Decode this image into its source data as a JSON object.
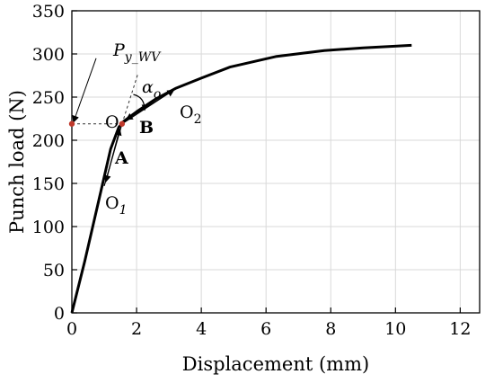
{
  "chart_data": {
    "type": "line",
    "xlabel": "Displacement (mm)",
    "ylabel": "Punch load (N)",
    "xlim": [
      0,
      12.6
    ],
    "ylim": [
      0,
      350
    ],
    "x_ticks": [
      0,
      2,
      4,
      6,
      8,
      10,
      12
    ],
    "y_ticks": [
      0,
      50,
      100,
      150,
      200,
      250,
      300,
      350
    ],
    "x_tick_labels": [
      "0",
      "2",
      "4",
      "6",
      "8",
      "10",
      "12"
    ],
    "y_tick_labels": [
      "0",
      "50",
      "100",
      "150",
      "200",
      "250",
      "300",
      "350"
    ],
    "grid": true,
    "series": [
      {
        "x": [
          0,
          0.4,
          0.8,
          1.2,
          1.45,
          1.6,
          2.0,
          2.6,
          3.2,
          4.0,
          4.9,
          6.3,
          7.8,
          9.0,
          10.5
        ],
        "y": [
          0,
          60,
          125,
          190,
          215,
          222,
          233,
          248,
          260,
          272,
          285,
          297,
          304,
          307,
          310
        ]
      }
    ],
    "annotations": {
      "py_label_main": "P",
      "py_label_sub": "y_WV",
      "py_value": 219,
      "point_O": {
        "label": "O",
        "x": 1.55,
        "y": 219
      },
      "point_O1": {
        "label": "O",
        "sub": "1",
        "x": 1.0,
        "y": 147
      },
      "point_O2": {
        "label": "O",
        "sub": "2",
        "x": 3.3,
        "y": 262
      },
      "label_A": "A",
      "label_B": "B",
      "alpha_main": "α",
      "alpha_sub": "o"
    }
  }
}
